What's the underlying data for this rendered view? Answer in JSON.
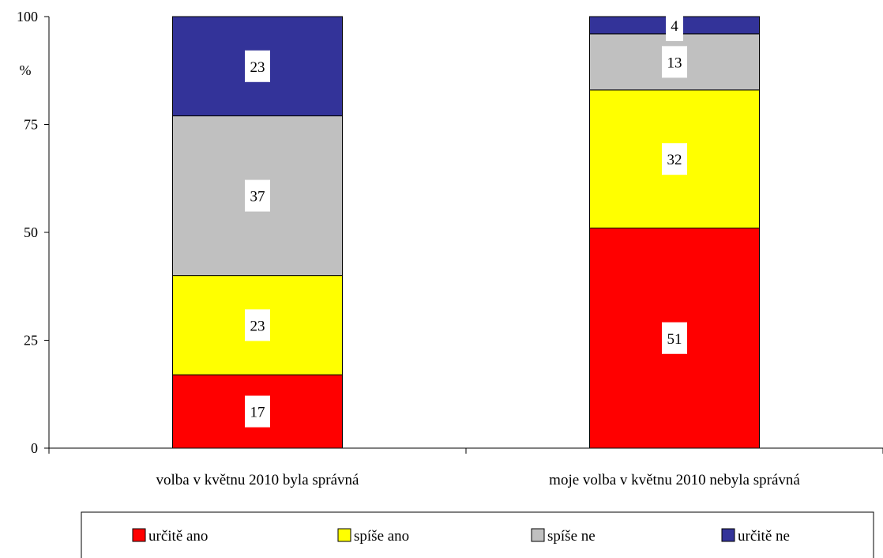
{
  "chart_data": {
    "type": "bar",
    "stacked": true,
    "categories": [
      "volba v květnu 2010 byla správná",
      "moje volba v květnu 2010 nebyla správná"
    ],
    "series": [
      {
        "name": "určitě ano",
        "color": "#ff0000",
        "values": [
          17,
          51
        ]
      },
      {
        "name": "spíše ano",
        "color": "#ffff00",
        "values": [
          23,
          32
        ]
      },
      {
        "name": "spíše ne",
        "color": "#c0c0c0",
        "values": [
          37,
          13
        ]
      },
      {
        "name": "určitě ne",
        "color": "#333399",
        "values": [
          23,
          4
        ]
      }
    ],
    "ylabel": "%",
    "ylim": [
      0,
      100
    ],
    "yticks": [
      0,
      25,
      50,
      75,
      100
    ],
    "grid": false,
    "legend_position": "bottom"
  }
}
